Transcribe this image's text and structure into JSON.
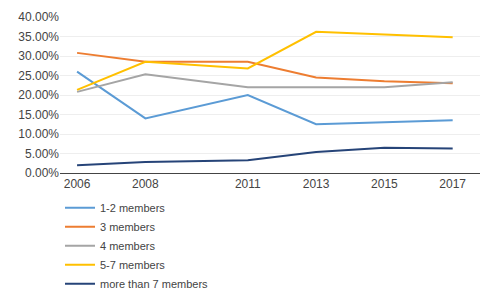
{
  "chart_data": {
    "type": "line",
    "x": [
      2006,
      2008,
      2011,
      2013,
      2015,
      2017
    ],
    "series": [
      {
        "name": "1-2 members",
        "color": "#5b9bd5",
        "values": [
          0.26,
          0.14,
          0.2,
          0.125,
          0.13,
          0.135
        ]
      },
      {
        "name": "3 members",
        "color": "#ed7d31",
        "values": [
          0.308,
          0.285,
          0.285,
          0.245,
          0.235,
          0.23
        ]
      },
      {
        "name": "4 members",
        "color": "#a5a5a5",
        "values": [
          0.208,
          0.253,
          0.22,
          0.22,
          0.22,
          0.233
        ]
      },
      {
        "name": "5-7 members",
        "color": "#ffc000",
        "values": [
          0.213,
          0.285,
          0.268,
          0.362,
          0.355,
          0.348
        ]
      },
      {
        "name": "more than 7 members",
        "color": "#264478",
        "values": [
          0.02,
          0.028,
          0.033,
          0.054,
          0.065,
          0.063
        ]
      }
    ],
    "xlim": [
      2005.5,
      2017.8
    ],
    "xticks": [
      2006,
      2008,
      2011,
      2013,
      2015,
      2017
    ],
    "ylim": [
      0.0,
      0.4
    ],
    "yticks": [
      {
        "value": 0.0,
        "label": "0.00%"
      },
      {
        "value": 0.05,
        "label": "5.00%"
      },
      {
        "value": 0.1,
        "label": "10.00%"
      },
      {
        "value": 0.15,
        "label": "15.00%"
      },
      {
        "value": 0.2,
        "label": "20.00%"
      },
      {
        "value": 0.25,
        "label": "25.00%"
      },
      {
        "value": 0.3,
        "label": "30.00%"
      },
      {
        "value": 0.35,
        "label": "35.00%"
      },
      {
        "value": 0.4,
        "label": "40.00%"
      }
    ],
    "grid": "y",
    "legend": "bottom"
  }
}
